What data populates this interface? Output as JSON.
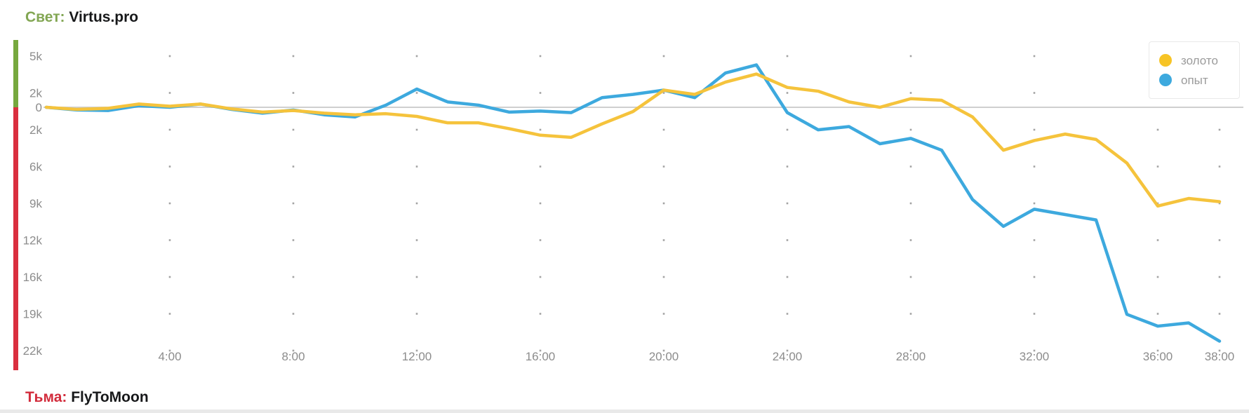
{
  "header": {
    "light_label": "Свет:",
    "light_team": "Virtus.pro"
  },
  "footer": {
    "dark_label": "Тьма:",
    "dark_team": "FlyToMoon"
  },
  "legend": {
    "items": [
      {
        "id": "gold",
        "label": "золото",
        "color": "#f7c425"
      },
      {
        "id": "xp",
        "label": "опыт",
        "color": "#3da9de"
      }
    ]
  },
  "colors": {
    "radiant_green": "#76a83e",
    "dire_red": "#da2f3f",
    "gold_line": "#f5c33c",
    "xp_line": "#3da9de",
    "zero_line": "#cfcfcf",
    "axis_text": "#8c8c8c",
    "grid_dot": "#a3a3a3"
  },
  "chart_data": {
    "type": "line",
    "title": "",
    "x_unit": "minutes",
    "values_in": "thousands (advantage; positive = Radiant/Свет, negative = Dire/Тьма)",
    "x": [
      0,
      1,
      2,
      3,
      4,
      5,
      6,
      7,
      8,
      9,
      10,
      11,
      12,
      13,
      14,
      15,
      16,
      17,
      18,
      19,
      20,
      21,
      22,
      23,
      24,
      25,
      26,
      27,
      28,
      29,
      30,
      31,
      32,
      33,
      34,
      35,
      36,
      37,
      38
    ],
    "series": [
      {
        "id": "gold",
        "name": "золото",
        "color": "#f5c33c",
        "values": [
          0,
          -0.2,
          -0.1,
          0.3,
          0.1,
          0.3,
          -0.15,
          -0.45,
          -0.3,
          -0.55,
          -0.7,
          -0.6,
          -0.85,
          -1.45,
          -1.45,
          -2,
          -2.6,
          -2.8,
          -1.55,
          -0.4,
          1.6,
          1.2,
          2.35,
          3.1,
          1.85,
          1.5,
          0.5,
          0,
          0.8,
          0.65,
          -0.9,
          -4,
          -3.1,
          -2.5,
          -3,
          -5.2,
          -9.2,
          -8.5,
          -8.8
        ]
      },
      {
        "id": "xp",
        "name": "опыт",
        "color": "#3da9de",
        "values": [
          0,
          -0.25,
          -0.3,
          0.15,
          0,
          0.3,
          -0.2,
          -0.55,
          -0.25,
          -0.7,
          -0.9,
          0.2,
          1.7,
          0.5,
          0.2,
          -0.45,
          -0.35,
          -0.5,
          0.9,
          1.2,
          1.6,
          0.9,
          3.2,
          3.95,
          -0.5,
          -2.1,
          -1.8,
          -3.4,
          -2.9,
          -4,
          -8.6,
          -11.1,
          -9.5,
          -10,
          -10.5,
          -19.3,
          -20.4,
          -20.1,
          -21.8
        ]
      }
    ],
    "x_tick_minutes": [
      4,
      8,
      12,
      16,
      20,
      24,
      28,
      32,
      36,
      38
    ],
    "x_tick_labels": [
      "4:00",
      "8:00",
      "12:00",
      "16:00",
      "20:00",
      "24:00",
      "28:00",
      "32:00",
      "36:00",
      "38:00"
    ],
    "y_tick_labels": [
      "5k",
      "2k",
      "0",
      "2k",
      "6k",
      "9k",
      "12k",
      "16k",
      "19k",
      "22k"
    ],
    "ylim": [
      -23,
      6.3
    ],
    "grid": "dots at tick intersections",
    "zero_line": true,
    "legend_position": "top-right",
    "positive_side_label": "Свет: Virtus.pro",
    "negative_side_label": "Тьма: FlyToMoon"
  }
}
